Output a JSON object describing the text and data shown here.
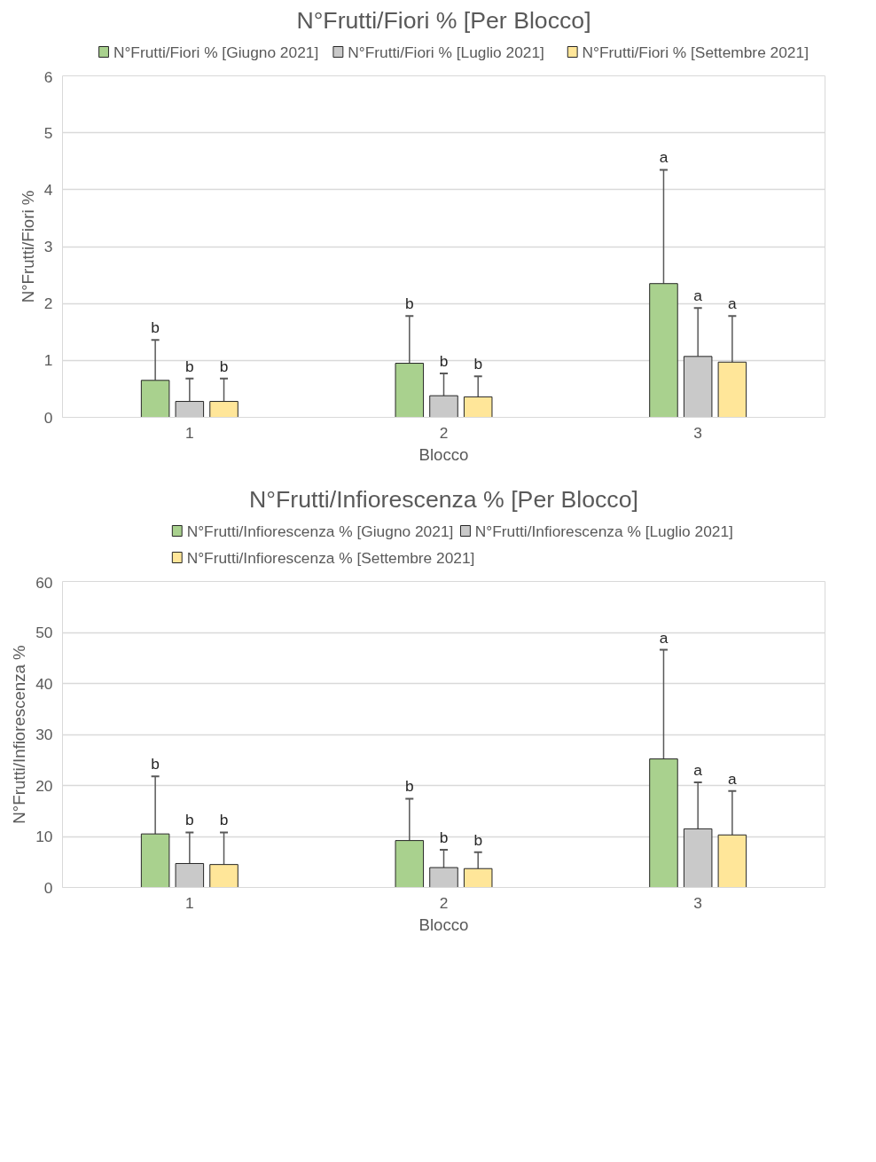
{
  "chart_data": [
    {
      "type": "bar",
      "title": "N°Frutti/Fiori % [Per Blocco]",
      "xlabel": "Blocco",
      "ylabel": "N°Frutti/Fiori %",
      "categories": [
        "1",
        "2",
        "3"
      ],
      "series": [
        {
          "name": "N°Frutti/Fiori % [Giugno 2021]",
          "color": "#a9d18e",
          "values": [
            0.65,
            0.95,
            2.35
          ],
          "errors": [
            [
              0.65,
              1.36
            ],
            [
              0.95,
              1.78
            ],
            [
              2.35,
              4.35
            ]
          ]
        },
        {
          "name": "N°Frutti/Fiori % [Luglio 2021]",
          "color": "#c9c9c9",
          "values": [
            0.28,
            0.38,
            1.07
          ],
          "errors": [
            [
              0.28,
              0.68
            ],
            [
              0.38,
              0.77
            ],
            [
              1.07,
              1.92
            ]
          ]
        },
        {
          "name": "N°Frutti/Fiori % [Settembre 2021]",
          "color": "#ffe699",
          "values": [
            0.28,
            0.36,
            0.97
          ],
          "errors": [
            [
              0.28,
              0.68
            ],
            [
              0.36,
              0.72
            ],
            [
              0.97,
              1.78
            ]
          ]
        }
      ],
      "annotations": [
        "b",
        "b",
        "b",
        "b",
        "b",
        "b",
        "a",
        "a",
        "a"
      ],
      "ylim": [
        0,
        6
      ],
      "yticks": [
        0,
        1,
        2,
        3,
        4,
        5,
        6
      ],
      "grid": "y",
      "legend": "top"
    },
    {
      "type": "bar",
      "title": "N°Frutti/Infiorescenza % [Per Blocco]",
      "xlabel": "Blocco",
      "ylabel": "N°Frutti/Infiorescenza %",
      "categories": [
        "1",
        "2",
        "3"
      ],
      "series": [
        {
          "name": "N°Frutti/Infiorescenza % [Giugno 2021]",
          "color": "#a9d18e",
          "values": [
            10.5,
            9.2,
            25.2
          ],
          "errors": [
            [
              10.5,
              21.8
            ],
            [
              9.2,
              17.4
            ],
            [
              25.2,
              46.6
            ]
          ]
        },
        {
          "name": "N°Frutti/Infiorescenza % [Luglio 2021]",
          "color": "#c9c9c9",
          "values": [
            4.7,
            3.9,
            11.5
          ],
          "errors": [
            [
              4.7,
              10.8
            ],
            [
              3.9,
              7.4
            ],
            [
              11.5,
              20.6
            ]
          ]
        },
        {
          "name": "N°Frutti/Infiorescenza % [Settembre 2021]",
          "color": "#ffe699",
          "values": [
            4.5,
            3.7,
            10.3
          ],
          "errors": [
            [
              4.5,
              10.8
            ],
            [
              3.7,
              6.9
            ],
            [
              10.3,
              18.9
            ]
          ]
        }
      ],
      "annotations": [
        "b",
        "b",
        "b",
        "b",
        "b",
        "b",
        "a",
        "a",
        "a"
      ],
      "ylim": [
        0,
        60
      ],
      "yticks": [
        0,
        10,
        20,
        30,
        40,
        50,
        60
      ],
      "grid": "y",
      "legend": "top"
    }
  ]
}
